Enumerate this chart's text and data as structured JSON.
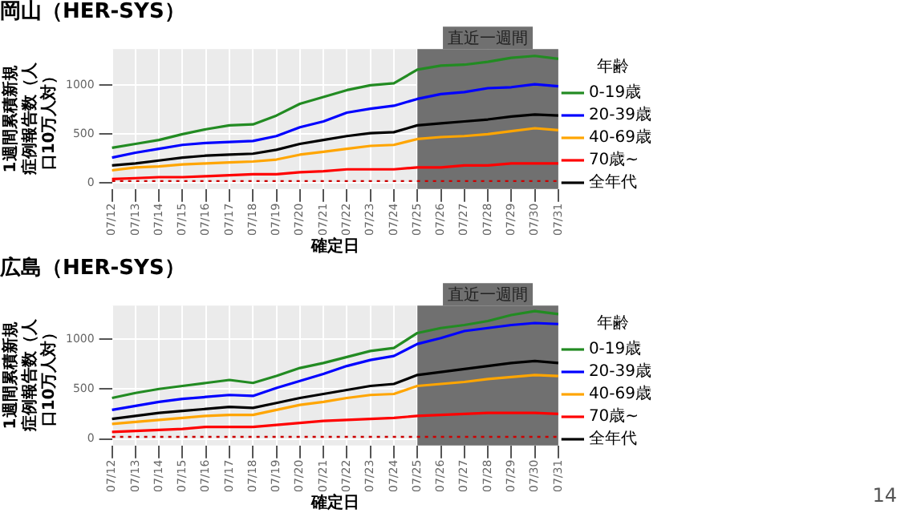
{
  "chart_data": [
    {
      "type": "line",
      "title": "岡山（HER-SYS）",
      "xlabel": "確定日",
      "ylabel": "1週間累積新規症例報告数（人口10万人対）",
      "legend_title": "年齢",
      "categories": [
        "07/12",
        "07/13",
        "07/14",
        "07/15",
        "07/16",
        "07/17",
        "07/18",
        "07/19",
        "07/20",
        "07/21",
        "07/22",
        "07/23",
        "07/24",
        "07/25",
        "07/26",
        "07/27",
        "07/28",
        "07/29",
        "07/30",
        "07/31"
      ],
      "series": [
        {
          "name": "0-19歳",
          "color": "#228b22",
          "values": [
            360,
            400,
            440,
            500,
            550,
            590,
            600,
            690,
            810,
            880,
            950,
            1000,
            1020,
            1160,
            1200,
            1210,
            1240,
            1280,
            1300,
            1270
          ]
        },
        {
          "name": "20-39歳",
          "color": "#0000ff",
          "values": [
            260,
            310,
            350,
            390,
            410,
            420,
            430,
            480,
            570,
            630,
            720,
            760,
            790,
            860,
            910,
            930,
            970,
            980,
            1010,
            990
          ]
        },
        {
          "name": "40-69歳",
          "color": "#ffa500",
          "values": [
            130,
            160,
            170,
            190,
            200,
            210,
            220,
            240,
            290,
            320,
            350,
            380,
            390,
            450,
            470,
            480,
            500,
            530,
            560,
            540
          ]
        },
        {
          "name": "70歳~",
          "color": "#ff0000",
          "values": [
            40,
            50,
            60,
            60,
            70,
            80,
            90,
            90,
            110,
            120,
            140,
            140,
            140,
            160,
            160,
            180,
            180,
            200,
            200,
            200
          ]
        },
        {
          "name": "全年代",
          "color": "#000000",
          "values": [
            180,
            200,
            230,
            260,
            280,
            290,
            300,
            340,
            400,
            440,
            480,
            510,
            520,
            590,
            610,
            630,
            650,
            680,
            700,
            690
          ]
        }
      ],
      "ylim": [
        -60,
        1370
      ],
      "yticks": [
        0,
        500,
        1000
      ],
      "grid": true,
      "legend": "right",
      "ref_lines": [
        {
          "axis": "y",
          "value": 20,
          "color": "#cc0000",
          "line_style": "dotted"
        }
      ],
      "bands": [
        {
          "axis": "x",
          "from": "07/25",
          "to": "07/31",
          "label": "直近一週間",
          "color": "#707070"
        }
      ]
    },
    {
      "type": "line",
      "title": "広島（HER-SYS）",
      "xlabel": "確定日",
      "ylabel": "1週間累積新規症例報告数（人口10万人対）",
      "legend_title": "年齢",
      "categories": [
        "07/12",
        "07/13",
        "07/14",
        "07/15",
        "07/16",
        "07/17",
        "07/18",
        "07/19",
        "07/20",
        "07/21",
        "07/22",
        "07/23",
        "07/24",
        "07/25",
        "07/26",
        "07/27",
        "07/28",
        "07/29",
        "07/30",
        "07/31"
      ],
      "series": [
        {
          "name": "0-19歳",
          "color": "#228b22",
          "values": [
            410,
            460,
            500,
            530,
            560,
            590,
            560,
            630,
            710,
            760,
            820,
            880,
            910,
            1060,
            1110,
            1140,
            1180,
            1240,
            1280,
            1250
          ]
        },
        {
          "name": "20-39歳",
          "color": "#0000ff",
          "values": [
            290,
            330,
            370,
            400,
            420,
            440,
            430,
            510,
            580,
            650,
            730,
            790,
            830,
            950,
            1010,
            1080,
            1110,
            1140,
            1160,
            1150
          ]
        },
        {
          "name": "40-69歳",
          "color": "#ffa500",
          "values": [
            150,
            170,
            190,
            210,
            230,
            240,
            240,
            290,
            340,
            370,
            410,
            440,
            450,
            530,
            550,
            570,
            600,
            620,
            640,
            630
          ]
        },
        {
          "name": "70歳~",
          "color": "#ff0000",
          "values": [
            70,
            80,
            90,
            100,
            120,
            120,
            120,
            140,
            160,
            180,
            190,
            200,
            210,
            230,
            240,
            250,
            260,
            260,
            260,
            250
          ]
        },
        {
          "name": "全年代",
          "color": "#000000",
          "values": [
            200,
            230,
            260,
            280,
            300,
            320,
            310,
            360,
            410,
            450,
            490,
            530,
            550,
            640,
            670,
            700,
            730,
            760,
            780,
            760
          ]
        }
      ],
      "ylim": [
        -65,
        1335
      ],
      "yticks": [
        0,
        500,
        1000
      ],
      "grid": true,
      "legend": "right",
      "ref_lines": [
        {
          "axis": "y",
          "value": 20,
          "color": "#cc0000",
          "line_style": "dotted"
        }
      ],
      "bands": [
        {
          "axis": "x",
          "from": "07/25",
          "to": "07/31",
          "label": "直近一週間",
          "color": "#707070"
        }
      ],
      "annotations": [
        "14"
      ]
    }
  ]
}
